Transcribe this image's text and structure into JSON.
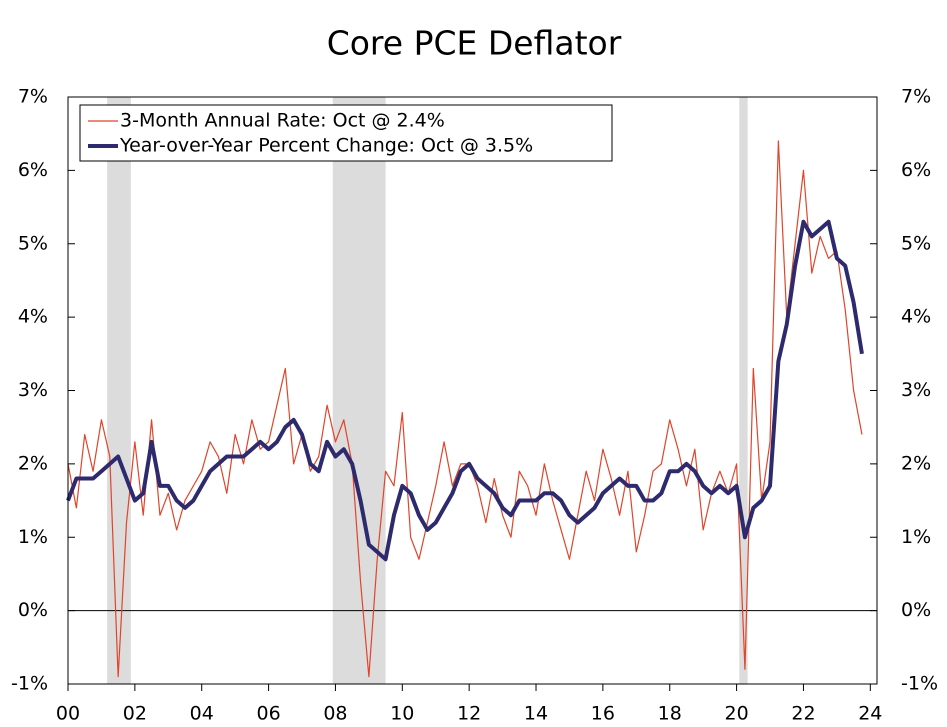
{
  "chart_data": {
    "type": "line",
    "title": "Core PCE Deflator",
    "x": [
      2000,
      2000.25,
      2000.5,
      2000.75,
      2001,
      2001.25,
      2001.5,
      2001.75,
      2002,
      2002.25,
      2002.5,
      2002.75,
      2003,
      2003.25,
      2003.5,
      2003.75,
      2004,
      2004.25,
      2004.5,
      2004.75,
      2005,
      2005.25,
      2005.5,
      2005.75,
      2006,
      2006.25,
      2006.5,
      2006.75,
      2007,
      2007.25,
      2007.5,
      2007.75,
      2008,
      2008.25,
      2008.5,
      2008.75,
      2009,
      2009.25,
      2009.5,
      2009.75,
      2010,
      2010.25,
      2010.5,
      2010.75,
      2011,
      2011.25,
      2011.5,
      2011.75,
      2012,
      2012.25,
      2012.5,
      2012.75,
      2013,
      2013.25,
      2013.5,
      2013.75,
      2014,
      2014.25,
      2014.5,
      2014.75,
      2015,
      2015.25,
      2015.5,
      2015.75,
      2016,
      2016.25,
      2016.5,
      2016.75,
      2017,
      2017.25,
      2017.5,
      2017.75,
      2018,
      2018.25,
      2018.5,
      2018.75,
      2019,
      2019.25,
      2019.5,
      2019.75,
      2020,
      2020.25,
      2020.5,
      2020.75,
      2021,
      2021.25,
      2021.5,
      2021.75,
      2022,
      2022.25,
      2022.5,
      2022.75,
      2023,
      2023.25,
      2023.5,
      2023.75
    ],
    "series": [
      {
        "name": "3-Month Annual Rate: Oct @ 2.4%",
        "color": "#e0442a",
        "width": 1.2,
        "values": [
          2.0,
          1.4,
          2.4,
          1.9,
          2.6,
          2.1,
          -0.9,
          1.2,
          2.3,
          1.3,
          2.6,
          1.3,
          1.6,
          1.1,
          1.5,
          1.7,
          1.9,
          2.3,
          2.1,
          1.6,
          2.4,
          2.0,
          2.6,
          2.2,
          2.3,
          2.8,
          3.3,
          2.0,
          2.4,
          1.9,
          2.1,
          2.8,
          2.3,
          2.6,
          2.0,
          0.4,
          -0.9,
          0.7,
          1.9,
          1.7,
          2.7,
          1.0,
          0.7,
          1.2,
          1.7,
          2.3,
          1.7,
          2.0,
          2.0,
          1.7,
          1.2,
          1.8,
          1.3,
          1.0,
          1.9,
          1.7,
          1.3,
          2.0,
          1.5,
          1.1,
          0.7,
          1.3,
          1.9,
          1.5,
          2.2,
          1.8,
          1.3,
          1.9,
          0.8,
          1.3,
          1.9,
          2.0,
          2.6,
          2.2,
          1.7,
          2.2,
          1.1,
          1.6,
          1.9,
          1.6,
          2.0,
          -0.8,
          3.3,
          1.5,
          2.3,
          6.4,
          4.0,
          5.0,
          6.0,
          4.6,
          5.1,
          4.8,
          4.9,
          4.1,
          3.0,
          2.4
        ]
      },
      {
        "name": "Year-over-Year Percent Change: Oct @ 3.5%",
        "color": "#2e2a6e",
        "width": 4,
        "values": [
          1.5,
          1.8,
          1.8,
          1.8,
          1.9,
          2.0,
          2.1,
          1.8,
          1.5,
          1.6,
          2.3,
          1.7,
          1.7,
          1.5,
          1.4,
          1.5,
          1.7,
          1.9,
          2.0,
          2.1,
          2.1,
          2.1,
          2.2,
          2.3,
          2.2,
          2.3,
          2.5,
          2.6,
          2.4,
          2.0,
          1.9,
          2.3,
          2.1,
          2.2,
          2.0,
          1.5,
          0.9,
          0.8,
          0.7,
          1.3,
          1.7,
          1.6,
          1.3,
          1.1,
          1.2,
          1.4,
          1.6,
          1.9,
          2.0,
          1.8,
          1.7,
          1.6,
          1.4,
          1.3,
          1.5,
          1.5,
          1.5,
          1.6,
          1.6,
          1.5,
          1.3,
          1.2,
          1.3,
          1.4,
          1.6,
          1.7,
          1.8,
          1.7,
          1.7,
          1.5,
          1.5,
          1.6,
          1.9,
          1.9,
          2.0,
          1.9,
          1.7,
          1.6,
          1.7,
          1.6,
          1.7,
          1.0,
          1.4,
          1.5,
          1.7,
          3.4,
          3.9,
          4.7,
          5.3,
          5.1,
          5.2,
          5.3,
          4.8,
          4.7,
          4.2,
          3.5
        ]
      }
    ],
    "recessions": [
      [
        2001.17,
        2001.88
      ],
      [
        2007.92,
        2009.5
      ],
      [
        2020.08,
        2020.33
      ]
    ],
    "recession_color": "#dcdcdc",
    "xlim": [
      2000,
      2024.2
    ],
    "xticks": [
      {
        "value": 2000,
        "label": "00"
      },
      {
        "value": 2002,
        "label": "02"
      },
      {
        "value": 2004,
        "label": "04"
      },
      {
        "value": 2006,
        "label": "06"
      },
      {
        "value": 2008,
        "label": "08"
      },
      {
        "value": 2010,
        "label": "10"
      },
      {
        "value": 2012,
        "label": "12"
      },
      {
        "value": 2014,
        "label": "14"
      },
      {
        "value": 2016,
        "label": "16"
      },
      {
        "value": 2018,
        "label": "18"
      },
      {
        "value": 2020,
        "label": "20"
      },
      {
        "value": 2022,
        "label": "22"
      },
      {
        "value": 2024,
        "label": "24"
      }
    ],
    "ylim": [
      -1,
      7
    ],
    "yticks": [
      {
        "value": -1,
        "label": "-1%"
      },
      {
        "value": 0,
        "label": "0%"
      },
      {
        "value": 1,
        "label": "1%"
      },
      {
        "value": 2,
        "label": "2%"
      },
      {
        "value": 3,
        "label": "3%"
      },
      {
        "value": 4,
        "label": "4%"
      },
      {
        "value": 5,
        "label": "5%"
      },
      {
        "value": 6,
        "label": "6%"
      },
      {
        "value": 7,
        "label": "7%"
      }
    ],
    "y2lim": [
      -1,
      7
    ],
    "y2ticks": [
      {
        "value": -1,
        "label": "-1%"
      },
      {
        "value": 0,
        "label": "0%"
      },
      {
        "value": 1,
        "label": "1%"
      },
      {
        "value": 2,
        "label": "2%"
      },
      {
        "value": 3,
        "label": "3%"
      },
      {
        "value": 4,
        "label": "4%"
      },
      {
        "value": 5,
        "label": "5%"
      },
      {
        "value": 6,
        "label": "6%"
      },
      {
        "value": 7,
        "label": "7%"
      }
    ],
    "legend": "top-left"
  }
}
